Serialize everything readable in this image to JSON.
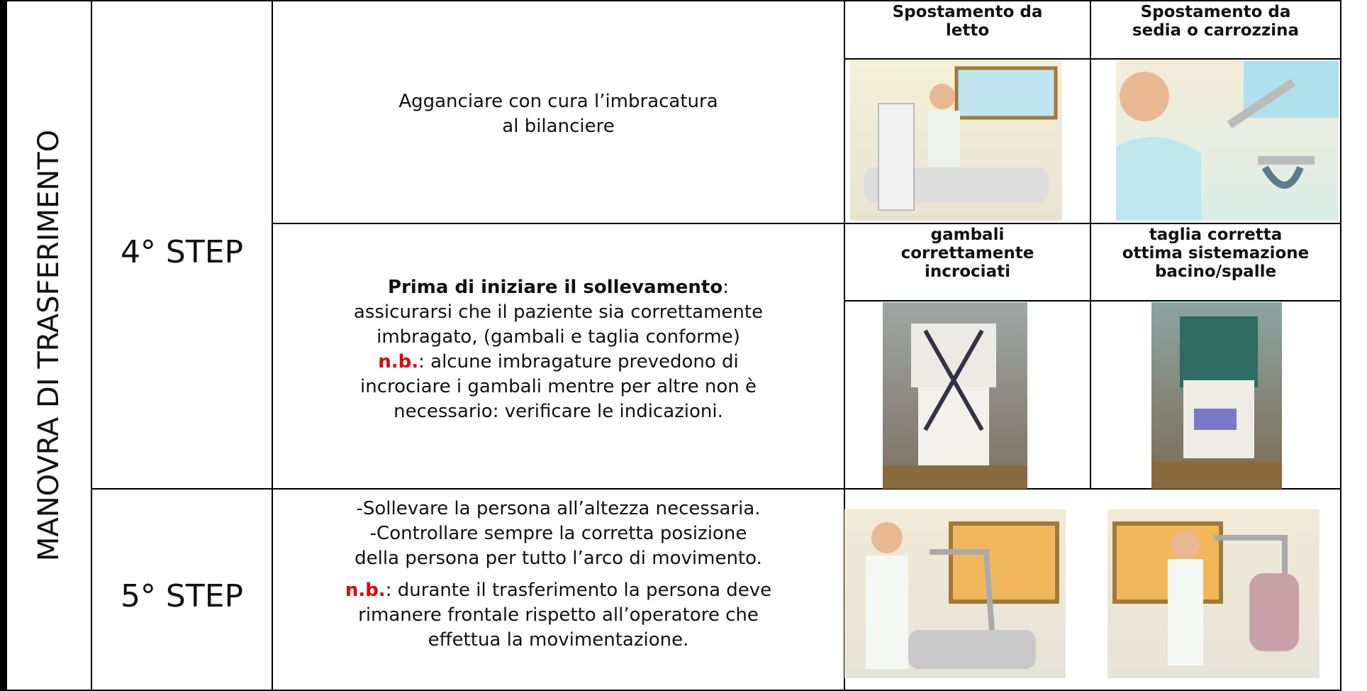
{
  "side_label": "MANOVRA DI TRASFERIMENTO",
  "rows": [
    {
      "step": "4° STEP",
      "instruction": [
        "Agganciare con cura l’imbracatura",
        "al bilanciere"
      ],
      "captions": [
        [
          "Spostamento da",
          "letto"
        ],
        [
          "Spostamento da",
          "sedia o carrozzina"
        ]
      ]
    },
    {
      "instruction_bold": "Prima di iniziare il sollevamento",
      "instruction_bold_after": ":",
      "instruction": [
        "assicurarsi che il paziente sia correttamente",
        "imbragato, (gambali e taglia conforme)"
      ],
      "nb": "n.b.",
      "nb_text": [
        ": alcune imbragature prevedono di",
        "incrociare i gambali mentre per altre non è",
        "necessario: verificare le indicazioni."
      ],
      "captions": [
        [
          "gambali",
          "correttamente",
          "incrociati"
        ],
        [
          "taglia corretta",
          "ottima sistemazione",
          "bacino/spalle"
        ]
      ]
    },
    {
      "step": "5° STEP",
      "instruction": [
        "-Sollevare la persona all’altezza necessaria.",
        "-Controllare sempre la corretta posizione",
        "della persona per tutto l’arco di movimento."
      ],
      "nb": "n.b.",
      "nb_text": [
        ": durante il trasferimento la persona deve",
        "rimanere frontale rispetto all’operatore che",
        "effettua la movimentazione."
      ]
    }
  ]
}
